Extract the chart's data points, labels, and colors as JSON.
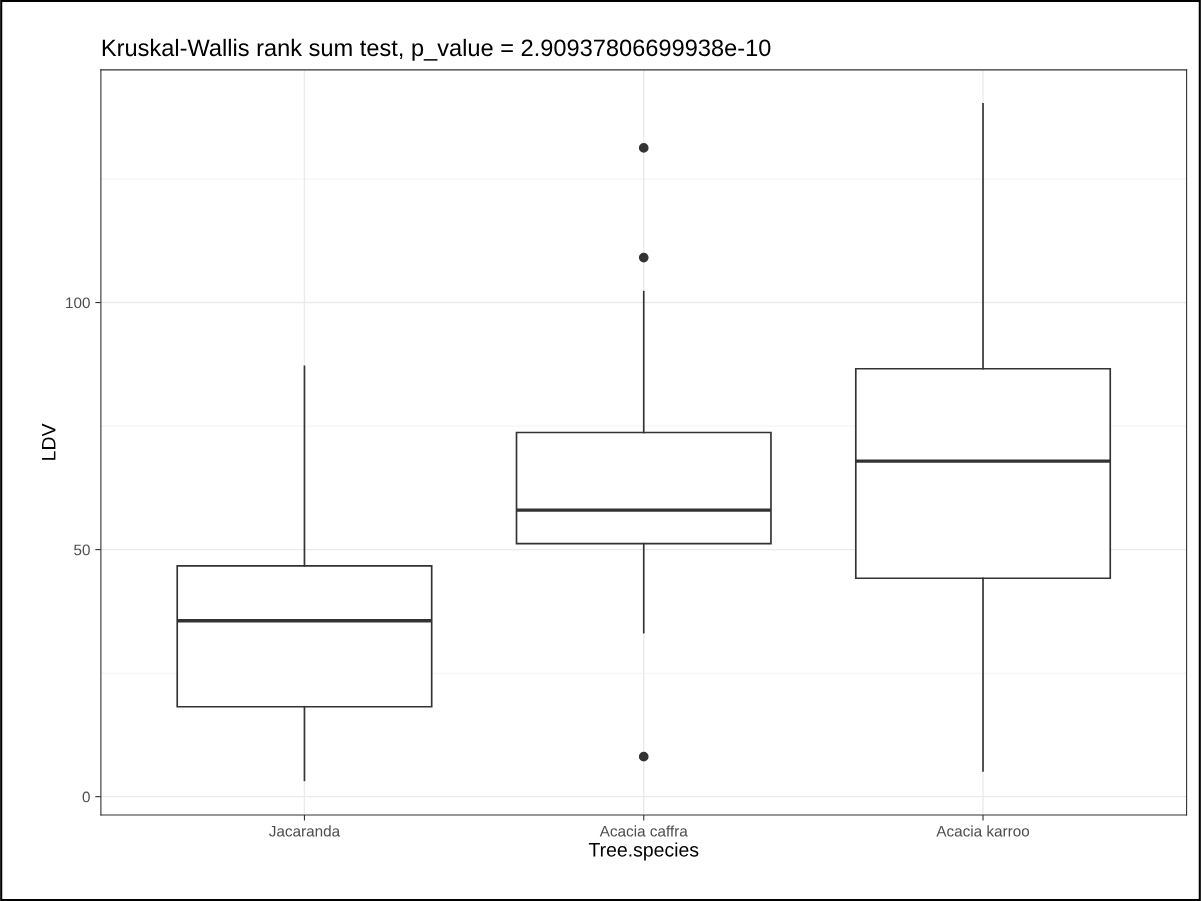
{
  "chart_data": {
    "type": "box",
    "title": "Kruskal-Wallis rank sum test, p_value = 2.90937806699938e-10",
    "xlabel": "Tree.species",
    "ylabel": "LDV",
    "categories": [
      "Jacaranda",
      "Acacia caffra",
      "Acacia karroo"
    ],
    "boxes": [
      {
        "low": 3.3,
        "q1": 18.2,
        "median": 35.6,
        "q3": 46.7,
        "high": 87.1
      },
      {
        "low": 33.2,
        "q1": 51.2,
        "median": 58.0,
        "q3": 73.7,
        "high": 102.2,
        "outliers": [
          131.3,
          109.1,
          8.1
        ]
      },
      {
        "low": 5.2,
        "q1": 44.2,
        "median": 67.9,
        "q3": 86.6,
        "high": 140.2
      }
    ],
    "color": "#333333",
    "ylim": [
      -3.7,
      147.1
    ],
    "yticks": [
      0,
      50,
      100
    ],
    "grid": true
  }
}
